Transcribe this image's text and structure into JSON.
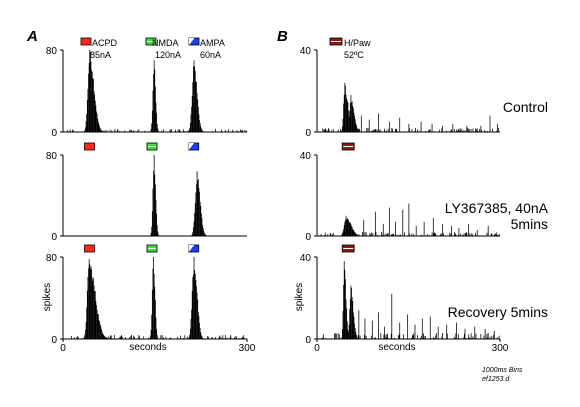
{
  "figure": {
    "panel_labels": [
      "A",
      "B"
    ],
    "footnote": [
      "1000ms Bins",
      "ef1253.d"
    ]
  },
  "colors": {
    "ACPD": "#ff2a1a",
    "NMDA": "#3cdc3c",
    "AMPA": "#1e3cff",
    "H/Paw": "#8b1a1a"
  },
  "chart_data": [
    {
      "id": "A",
      "type": "bar",
      "panel_label": "A",
      "xlabel": "seconds",
      "ylabel": "spikes",
      "xlim": [
        0,
        300
      ],
      "ylim": [
        0,
        80
      ],
      "xticks": [
        "0",
        "300"
      ],
      "yticks": [
        "0",
        "80"
      ],
      "bin_width_s": 1,
      "legend": [
        {
          "name": "ACPD",
          "dose": "85nA",
          "color_key": "ACPD",
          "start": 35,
          "end": 45
        },
        {
          "name": "NMDA",
          "dose": "120nA",
          "color_key": "NMDA",
          "start": 137,
          "end": 147
        },
        {
          "name": "AMPA",
          "dose": "60nA",
          "color_key": "AMPA",
          "start": 205,
          "end": 215
        }
      ],
      "rows": [
        {
          "label": "",
          "peaks": [
            {
              "center": 43,
              "height": 80,
              "rise": 3,
              "decay": 7,
              "duration": 22
            },
            {
              "center": 148,
              "height": 70,
              "rise": 2,
              "decay": 2.5,
              "duration": 8
            },
            {
              "center": 213,
              "height": 70,
              "rise": 3,
              "decay": 5,
              "duration": 16
            }
          ],
          "baseline": 3
        },
        {
          "label": "",
          "peaks": [
            {
              "center": 148,
              "height": 80,
              "rise": 2,
              "decay": 2.5,
              "duration": 8
            },
            {
              "center": 218,
              "height": 64,
              "rise": 3,
              "decay": 5,
              "duration": 16
            }
          ],
          "baseline": 0.4
        },
        {
          "label": "",
          "peaks": [
            {
              "center": 42,
              "height": 78,
              "rise": 3,
              "decay": 10,
              "duration": 30
            },
            {
              "center": 147,
              "height": 80,
              "rise": 2,
              "decay": 2.5,
              "duration": 8
            },
            {
              "center": 213,
              "height": 80,
              "rise": 3,
              "decay": 5,
              "duration": 16
            }
          ],
          "baseline": 4
        }
      ]
    },
    {
      "id": "B",
      "type": "bar",
      "panel_label": "B",
      "xlabel": "seconds",
      "ylabel": "spikes",
      "xlim": [
        0,
        300
      ],
      "ylim": [
        0,
        40
      ],
      "xticks": [
        "0",
        "300"
      ],
      "yticks": [
        "0",
        "40"
      ],
      "bin_width_s": 1,
      "legend": [
        {
          "name": "H/Paw",
          "dose": "52ºC",
          "color_key": "H/Paw",
          "start": 43,
          "end": 63
        }
      ],
      "rows": [
        {
          "label": "Control",
          "peaks": [
            {
              "center": 45,
              "height": 24,
              "rise": 2,
              "decay": 5,
              "duration": 15
            },
            {
              "center": 55,
              "height": 18,
              "rise": 2,
              "decay": 5,
              "duration": 12
            }
          ],
          "baseline": 2,
          "spikes": [
            [
              72,
              8
            ],
            [
              85,
              6
            ],
            [
              100,
              9
            ],
            [
              118,
              5
            ],
            [
              135,
              7
            ],
            [
              150,
              4
            ],
            [
              170,
              5
            ],
            [
              188,
              4
            ],
            [
              205,
              3
            ],
            [
              222,
              4
            ],
            [
              245,
              3
            ],
            [
              268,
              3
            ],
            [
              283,
              8
            ],
            [
              295,
              4
            ]
          ]
        },
        {
          "label": "LY367385, 40nA\n 5mins",
          "peaks": [
            {
              "center": 47,
              "height": 10,
              "rise": 3,
              "decay": 8,
              "duration": 22
            }
          ],
          "baseline": 2,
          "spikes": [
            [
              76,
              8
            ],
            [
              95,
              12
            ],
            [
              108,
              6
            ],
            [
              118,
              14
            ],
            [
              128,
              7
            ],
            [
              140,
              13
            ],
            [
              150,
              16
            ],
            [
              162,
              5
            ],
            [
              175,
              7
            ],
            [
              190,
              9
            ],
            [
              205,
              6
            ],
            [
              220,
              5
            ],
            [
              232,
              4
            ],
            [
              248,
              6
            ],
            [
              262,
              3
            ],
            [
              280,
              5
            ]
          ]
        },
        {
          "label": "Recovery 5mins",
          "peaks": [
            {
              "center": 44,
              "height": 38,
              "rise": 1.5,
              "decay": 3,
              "duration": 9
            },
            {
              "center": 55,
              "height": 26,
              "rise": 2,
              "decay": 4,
              "duration": 10
            }
          ],
          "baseline": 3,
          "spikes": [
            [
              68,
              14
            ],
            [
              78,
              10
            ],
            [
              90,
              9
            ],
            [
              100,
              13
            ],
            [
              110,
              6
            ],
            [
              122,
              22
            ],
            [
              135,
              8
            ],
            [
              148,
              12
            ],
            [
              160,
              7
            ],
            [
              172,
              10
            ],
            [
              185,
              11
            ],
            [
              198,
              6
            ],
            [
              212,
              7
            ],
            [
              228,
              8
            ],
            [
              242,
              5
            ],
            [
              258,
              6
            ],
            [
              275,
              5
            ],
            [
              290,
              4
            ]
          ]
        }
      ]
    }
  ]
}
